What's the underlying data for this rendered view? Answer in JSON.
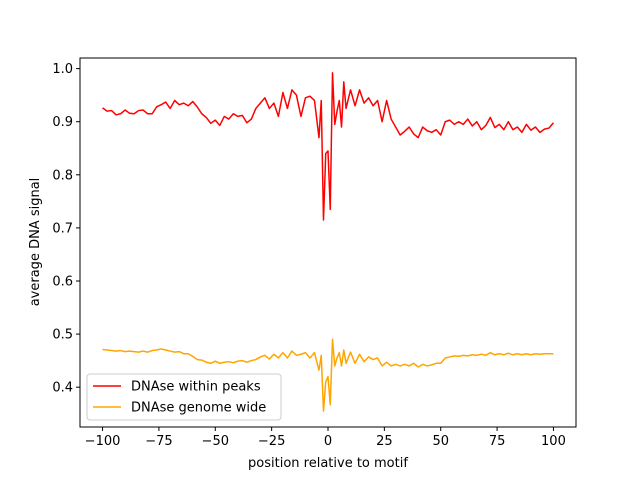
{
  "chart_data": {
    "type": "line",
    "xlabel": "position relative to motif",
    "ylabel": "average DNA signal",
    "xlim": [
      -110,
      110
    ],
    "ylim": [
      0.325,
      1.02
    ],
    "xticks": [
      -100,
      -75,
      -50,
      -25,
      0,
      25,
      50,
      75,
      100
    ],
    "xtick_labels": [
      "−100",
      "−75",
      "−50",
      "−25",
      "0",
      "25",
      "50",
      "75",
      "100"
    ],
    "yticks": [
      0.4,
      0.5,
      0.6,
      0.7,
      0.8,
      0.9,
      1.0
    ],
    "ytick_labels": [
      "0.4",
      "0.5",
      "0.6",
      "0.7",
      "0.8",
      "0.9",
      "1.0"
    ],
    "grid": false,
    "legend": "lower-left",
    "series": [
      {
        "name": "DNAse within peaks",
        "color": "#ff0000",
        "x": [
          -100,
          -98,
          -96,
          -94,
          -92,
          -90,
          -88,
          -86,
          -84,
          -82,
          -80,
          -78,
          -76,
          -74,
          -72,
          -70,
          -68,
          -66,
          -64,
          -62,
          -60,
          -58,
          -56,
          -54,
          -52,
          -50,
          -48,
          -46,
          -44,
          -42,
          -40,
          -38,
          -36,
          -34,
          -32,
          -30,
          -28,
          -26,
          -24,
          -22,
          -20,
          -18,
          -16,
          -14,
          -12,
          -10,
          -8,
          -6,
          -4,
          -3,
          -2,
          -1,
          0,
          1,
          2,
          3,
          4,
          5,
          6,
          7,
          8,
          10,
          12,
          14,
          16,
          18,
          20,
          22,
          24,
          26,
          28,
          30,
          32,
          34,
          36,
          38,
          40,
          42,
          44,
          46,
          48,
          50,
          52,
          54,
          56,
          58,
          60,
          62,
          64,
          66,
          68,
          70,
          72,
          74,
          76,
          78,
          80,
          82,
          84,
          86,
          88,
          90,
          92,
          94,
          96,
          98,
          100
        ],
        "y": [
          0.926,
          0.92,
          0.921,
          0.913,
          0.915,
          0.922,
          0.916,
          0.915,
          0.921,
          0.922,
          0.915,
          0.915,
          0.928,
          0.932,
          0.937,
          0.925,
          0.94,
          0.932,
          0.935,
          0.93,
          0.938,
          0.928,
          0.915,
          0.908,
          0.897,
          0.903,
          0.893,
          0.91,
          0.905,
          0.915,
          0.91,
          0.912,
          0.898,
          0.905,
          0.925,
          0.935,
          0.945,
          0.925,
          0.935,
          0.91,
          0.955,
          0.925,
          0.96,
          0.95,
          0.91,
          0.945,
          0.948,
          0.94,
          0.87,
          0.94,
          0.715,
          0.84,
          0.845,
          0.735,
          0.992,
          0.895,
          0.92,
          0.94,
          0.89,
          0.975,
          0.925,
          0.96,
          0.93,
          0.96,
          0.935,
          0.945,
          0.93,
          0.94,
          0.9,
          0.94,
          0.905,
          0.89,
          0.875,
          0.882,
          0.89,
          0.877,
          0.87,
          0.89,
          0.883,
          0.88,
          0.885,
          0.875,
          0.9,
          0.903,
          0.895,
          0.9,
          0.895,
          0.905,
          0.892,
          0.9,
          0.885,
          0.893,
          0.908,
          0.889,
          0.895,
          0.885,
          0.9,
          0.885,
          0.89,
          0.88,
          0.895,
          0.884,
          0.89,
          0.88,
          0.886,
          0.888,
          0.898
        ]
      },
      {
        "name": "DNAse genome wide",
        "color": "#ffa500",
        "x": [
          -100,
          -98,
          -96,
          -94,
          -92,
          -90,
          -88,
          -86,
          -84,
          -82,
          -80,
          -78,
          -76,
          -74,
          -72,
          -70,
          -68,
          -66,
          -64,
          -62,
          -60,
          -58,
          -56,
          -54,
          -52,
          -50,
          -48,
          -46,
          -44,
          -42,
          -40,
          -38,
          -36,
          -34,
          -32,
          -30,
          -28,
          -26,
          -24,
          -22,
          -20,
          -18,
          -16,
          -14,
          -12,
          -10,
          -8,
          -6,
          -4,
          -3,
          -2,
          -1,
          0,
          1,
          2,
          3,
          4,
          5,
          6,
          7,
          8,
          10,
          12,
          14,
          16,
          18,
          20,
          22,
          24,
          26,
          28,
          30,
          32,
          34,
          36,
          38,
          40,
          42,
          44,
          46,
          48,
          50,
          52,
          54,
          56,
          58,
          60,
          62,
          64,
          66,
          68,
          70,
          72,
          74,
          76,
          78,
          80,
          82,
          84,
          86,
          88,
          90,
          92,
          94,
          96,
          98,
          100
        ],
        "y": [
          0.471,
          0.47,
          0.469,
          0.468,
          0.469,
          0.467,
          0.468,
          0.467,
          0.466,
          0.468,
          0.466,
          0.469,
          0.47,
          0.472,
          0.47,
          0.468,
          0.466,
          0.467,
          0.463,
          0.463,
          0.458,
          0.452,
          0.451,
          0.447,
          0.445,
          0.449,
          0.445,
          0.447,
          0.448,
          0.446,
          0.449,
          0.45,
          0.447,
          0.45,
          0.452,
          0.457,
          0.46,
          0.453,
          0.462,
          0.455,
          0.465,
          0.455,
          0.468,
          0.46,
          0.462,
          0.465,
          0.455,
          0.465,
          0.432,
          0.46,
          0.355,
          0.41,
          0.42,
          0.367,
          0.49,
          0.44,
          0.455,
          0.465,
          0.44,
          0.47,
          0.445,
          0.466,
          0.445,
          0.462,
          0.448,
          0.457,
          0.452,
          0.455,
          0.44,
          0.447,
          0.44,
          0.443,
          0.44,
          0.443,
          0.44,
          0.445,
          0.438,
          0.443,
          0.44,
          0.442,
          0.445,
          0.445,
          0.455,
          0.457,
          0.459,
          0.458,
          0.46,
          0.459,
          0.461,
          0.46,
          0.462,
          0.46,
          0.465,
          0.461,
          0.463,
          0.461,
          0.464,
          0.461,
          0.463,
          0.461,
          0.463,
          0.461,
          0.463,
          0.462,
          0.463,
          0.463,
          0.463
        ]
      }
    ]
  }
}
